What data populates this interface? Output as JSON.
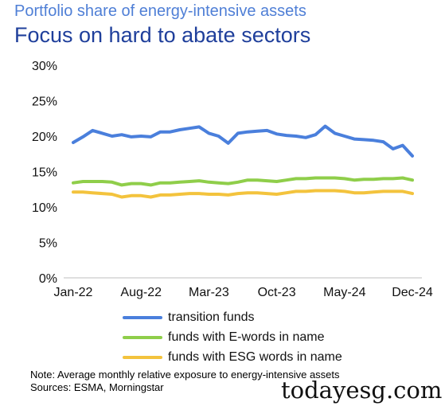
{
  "chart_data": {
    "type": "line",
    "title": "Portfolio share of energy-intensive assets",
    "subtitle": "Focus on hard to abate sectors",
    "xlabel": "",
    "ylabel": "",
    "ylim": [
      0,
      30
    ],
    "y_ticks": [
      "0%",
      "5%",
      "10%",
      "15%",
      "20%",
      "25%",
      "30%"
    ],
    "x_tick_labels": [
      "Jan-22",
      "Aug-22",
      "Mar-23",
      "Oct-23",
      "May-24",
      "Dec-24"
    ],
    "x": [
      "Jan-22",
      "Feb-22",
      "Mar-22",
      "Apr-22",
      "May-22",
      "Jun-22",
      "Jul-22",
      "Aug-22",
      "Sep-22",
      "Oct-22",
      "Nov-22",
      "Dec-22",
      "Jan-23",
      "Feb-23",
      "Mar-23",
      "Apr-23",
      "May-23",
      "Jun-23",
      "Jul-23",
      "Aug-23",
      "Sep-23",
      "Oct-23",
      "Nov-23",
      "Dec-23",
      "Jan-24",
      "Feb-24",
      "Mar-24",
      "Apr-24",
      "May-24",
      "Jun-24",
      "Jul-24",
      "Aug-24",
      "Sep-24",
      "Oct-24",
      "Nov-24",
      "Dec-24"
    ],
    "series": [
      {
        "name": "transition funds",
        "color": "#4a7fdc",
        "values": [
          19.1,
          19.9,
          20.8,
          20.4,
          20.0,
          20.2,
          19.9,
          20.0,
          19.9,
          20.6,
          20.6,
          20.9,
          21.1,
          21.3,
          20.4,
          20.0,
          19.0,
          20.4,
          20.6,
          20.7,
          20.8,
          20.3,
          20.1,
          20.0,
          19.8,
          20.2,
          21.4,
          20.4,
          20.0,
          19.6,
          19.5,
          19.4,
          19.2,
          18.2,
          18.7,
          17.2
        ]
      },
      {
        "name": "funds with E-words in name",
        "color": "#8fce4a",
        "values": [
          13.4,
          13.6,
          13.6,
          13.6,
          13.5,
          13.1,
          13.3,
          13.3,
          13.1,
          13.4,
          13.4,
          13.5,
          13.6,
          13.7,
          13.5,
          13.4,
          13.3,
          13.5,
          13.8,
          13.8,
          13.7,
          13.6,
          13.8,
          14.0,
          14.0,
          14.1,
          14.1,
          14.1,
          14.0,
          13.8,
          13.9,
          13.9,
          14.0,
          14.0,
          14.1,
          13.8
        ]
      },
      {
        "name": "funds with ESG words in name",
        "color": "#f3c33d",
        "values": [
          12.1,
          12.1,
          12.0,
          11.9,
          11.8,
          11.4,
          11.6,
          11.6,
          11.4,
          11.7,
          11.7,
          11.8,
          11.9,
          11.9,
          11.8,
          11.8,
          11.7,
          11.9,
          12.0,
          12.0,
          11.9,
          11.8,
          12.0,
          12.2,
          12.2,
          12.3,
          12.3,
          12.3,
          12.2,
          12.0,
          12.0,
          12.1,
          12.2,
          12.2,
          12.2,
          11.9
        ]
      }
    ],
    "grid": false,
    "legend_position": "bottom"
  },
  "note": "Note: Average monthly relative exposure to energy-intensive assets",
  "sources": "Sources: ESMA, Morningstar",
  "watermark": "todayesg.com"
}
